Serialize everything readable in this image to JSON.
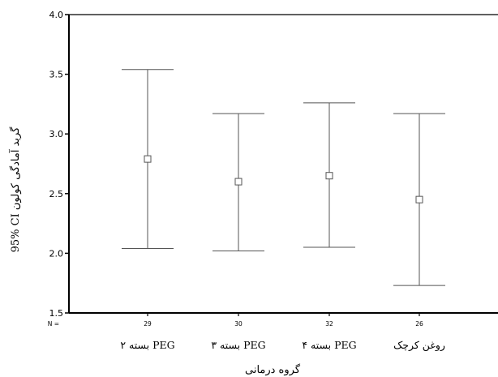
{
  "chart_data": {
    "type": "errorbar",
    "xlabel": "گروه درمانی",
    "ylabel": "95% CI گرید آمادگی کولون",
    "ylim": [
      1.5,
      4.0
    ],
    "yticks": [
      "1.5",
      "2.0",
      "2.5",
      "3.0",
      "3.5",
      "4.0"
    ],
    "n_prefix": "N =",
    "grid": false,
    "categories": [
      "۲ بسته PEG",
      "۳ بسته PEG",
      "۴ بسته PEG",
      "روغن کرچک"
    ],
    "n": [
      "29",
      "30",
      "32",
      "26"
    ],
    "mean": [
      2.79,
      2.6,
      2.65,
      2.45
    ],
    "ci_low": [
      2.04,
      2.02,
      2.05,
      1.73
    ],
    "ci_high": [
      3.54,
      3.17,
      3.26,
      3.17
    ]
  }
}
